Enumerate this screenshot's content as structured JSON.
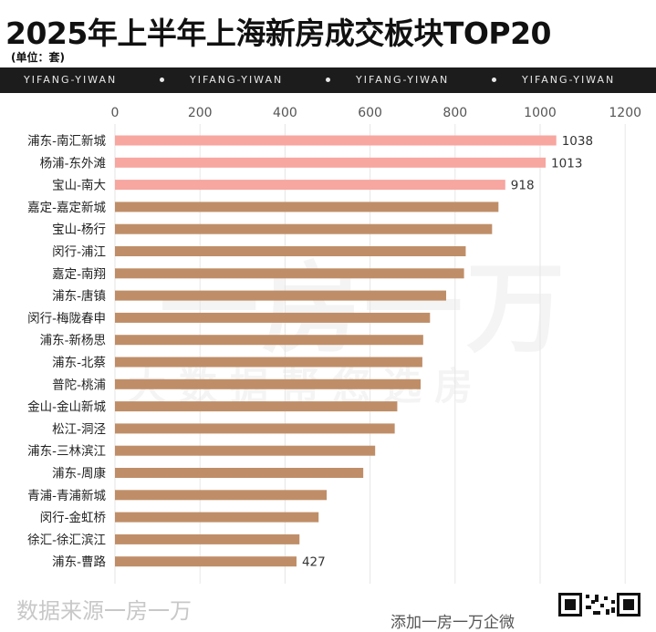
{
  "header": {
    "title": "2025年上半年上海新房成交板块TOP20",
    "unit_label": "(单位：套)",
    "band_text": "YIFANG-YIWAN"
  },
  "watermark": {
    "main": "一房一万",
    "sub": "大数据帮您选房"
  },
  "footer": {
    "source": "数据来源一房一万",
    "contact": "添加一房一万企微"
  },
  "colors": {
    "top3_bar": "#f7a6a0",
    "other_bar": "#bf8e68",
    "band": "#1c1c1c",
    "grid": "#e6e6e6"
  },
  "chart_data": {
    "type": "bar",
    "orientation": "horizontal",
    "categories": [
      "浦东-南汇新城",
      "杨浦-东外滩",
      "宝山-南大",
      "嘉定-嘉定新城",
      "宝山-杨行",
      "闵行-浦江",
      "嘉定-南翔",
      "浦东-唐镇",
      "闵行-梅陇春申",
      "浦东-新杨思",
      "浦东-北蔡",
      "普陀-桃浦",
      "金山-金山新城",
      "松江-洞泾",
      "浦东-三林滨江",
      "浦东-周康",
      "青浦-青浦新城",
      "闵行-金虹桥",
      "徐汇-徐汇滨江",
      "浦东-曹路"
    ],
    "values": [
      1038,
      1013,
      918,
      902,
      887,
      825,
      821,
      779,
      741,
      725,
      723,
      719,
      664,
      658,
      612,
      584,
      498,
      479,
      434,
      427
    ],
    "data_labels": {
      "0": "1038",
      "1": "1013",
      "2": "918",
      "19": "427"
    },
    "x_ticks": [
      "0",
      "200",
      "400",
      "600",
      "800",
      "1000",
      "1200"
    ],
    "xlim": [
      0,
      1200
    ],
    "highlight_top": 3,
    "grid": true,
    "x_axis_position": "top"
  }
}
